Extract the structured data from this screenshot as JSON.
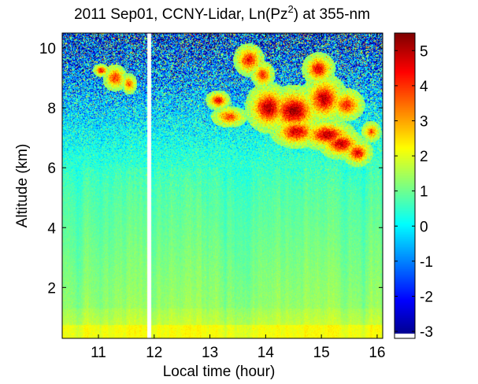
{
  "chart_data": {
    "type": "heatmap",
    "title_main": "2011 Sep01, CCNY-Lidar, Ln(Pz",
    "title_sup": "2",
    "title_tail": ") at 355-nm",
    "xlabel": "Local time (hour)",
    "ylabel": "Altitude (km)",
    "xlim": [
      10.35,
      16.1
    ],
    "ylim": [
      0.3,
      10.5
    ],
    "x_ticks": [
      11,
      12,
      13,
      14,
      15,
      16
    ],
    "y_ticks": [
      2,
      4,
      6,
      8,
      10
    ],
    "x_tick_labels": [
      "11",
      "12",
      "13",
      "14",
      "15",
      "16"
    ],
    "y_tick_labels": [
      "2",
      "4",
      "6",
      "8",
      "10"
    ],
    "color_range": [
      -3.2,
      5.5
    ],
    "colorbar_ticks": [
      -3,
      -2,
      -1,
      0,
      1,
      2,
      3,
      4,
      5
    ],
    "colorbar_tick_labels": [
      "-3",
      "-2",
      "-1",
      "0",
      "1",
      "2",
      "3",
      "4",
      "5"
    ],
    "colormap": "jet",
    "data_gap_x": [
      11.87,
      11.95
    ],
    "grid": false,
    "regions": [
      {
        "kind": "surface_layer",
        "x": [
          10.35,
          16.1
        ],
        "y": [
          0.3,
          1.2
        ],
        "value": 2.0
      },
      {
        "kind": "boundary_layer",
        "x": [
          10.35,
          16.1
        ],
        "y": [
          1.2,
          5.5
        ],
        "value": 0.9
      },
      {
        "kind": "noisy_free_troposphere",
        "x": [
          10.35,
          16.1
        ],
        "y": [
          6.5,
          10.5
        ],
        "value": -1.5
      },
      {
        "kind": "cirrus_cloud",
        "x": [
          13.0,
          16.0
        ],
        "y": [
          6.0,
          10.0
        ],
        "value": 4.5
      },
      {
        "kind": "cirrus_cloud",
        "x": [
          11.0,
          11.6
        ],
        "y": [
          8.4,
          9.6
        ],
        "value": 4.0
      }
    ]
  },
  "colors": {
    "background": "#ffffff",
    "axis": "#000000",
    "gap": "#ffffff"
  }
}
